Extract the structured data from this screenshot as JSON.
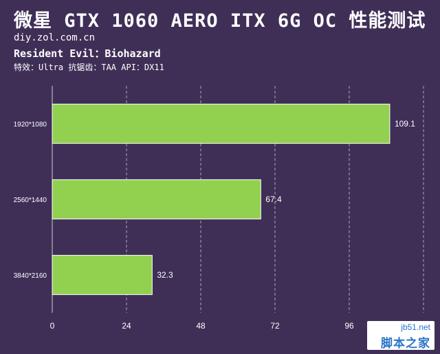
{
  "header": {
    "title": "微星 GTX 1060 AERO ITX 6G OC 性能测试",
    "site": "diy.zol.com.cn",
    "game": "Resident Evil：Biohazard",
    "settings": "特效：Ultra  抗锯齿：TAA  API：DX11"
  },
  "colors": {
    "background": "#3f2f57",
    "bar": "#92d050",
    "bar_border": "#ffffff",
    "grid": "#cfcfcf",
    "text": "#ffffff"
  },
  "chart_data": {
    "type": "bar",
    "orientation": "horizontal",
    "categories": [
      "1920*1080",
      "2560*1440",
      "3840*2160"
    ],
    "values": [
      109.1,
      67.4,
      32.3
    ],
    "x_ticks": [
      0,
      24,
      48,
      72,
      96
    ],
    "xlim": [
      0,
      120
    ],
    "grid": true,
    "grid_style": "dashed vertical"
  },
  "watermark": {
    "top": "jb51.net",
    "bottom": "脚本之家"
  }
}
